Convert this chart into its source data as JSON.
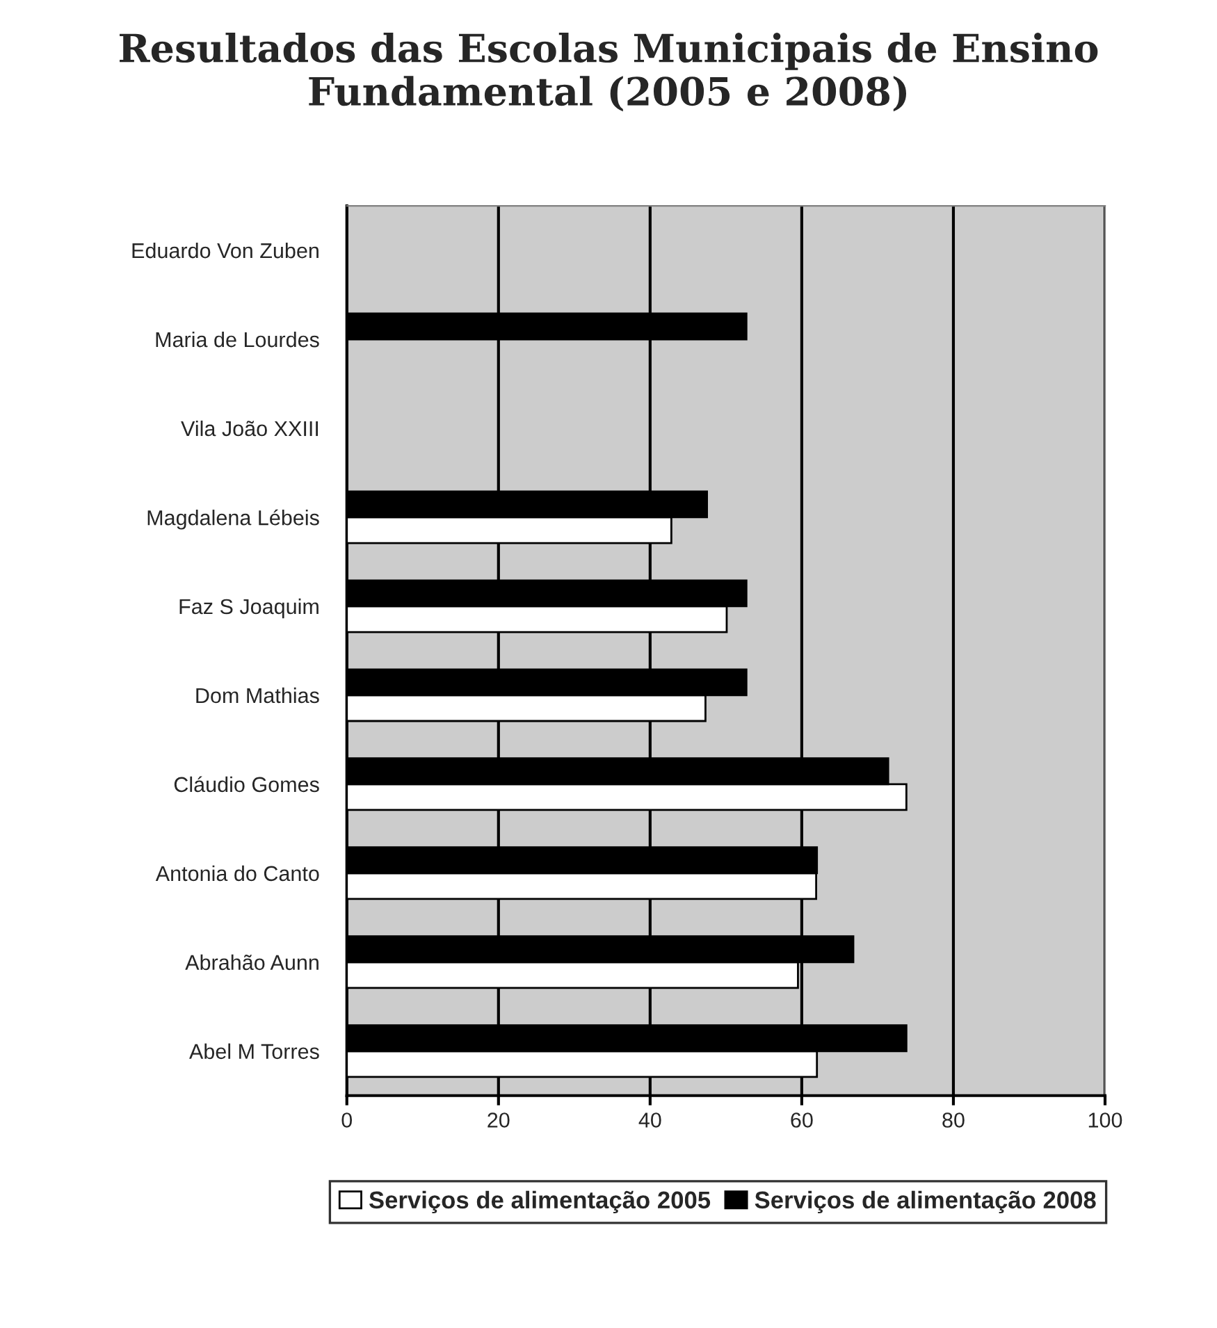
{
  "chart_data": {
    "type": "bar",
    "orientation": "horizontal",
    "title": "Resultados das Escolas Municipais de Ensino Fundamental (2005 e 2008)",
    "categories": [
      "Eduardo Von Zuben",
      "Maria de Lourdes",
      "Vila João XXIII",
      "Magdalena Lébeis",
      "Faz S Joaquim",
      "Dom Mathias",
      "Cláudio Gomes",
      "Antonia do Canto",
      "Abrahão Aunn",
      "Abel M Torres"
    ],
    "series": [
      {
        "name": "Serviços de alimentação 2005",
        "color": "#ffffff",
        "values": [
          null,
          null,
          null,
          42.8,
          50.1,
          47.3,
          73.8,
          61.9,
          59.5,
          62.0
        ]
      },
      {
        "name": "Serviços de alimentação 2008",
        "color": "#000000",
        "values": [
          null,
          52.7,
          null,
          47.5,
          52.7,
          52.7,
          71.4,
          62.0,
          66.8,
          73.8
        ]
      }
    ],
    "xlim": [
      0,
      100
    ],
    "xticks": [
      0,
      20,
      40,
      60,
      80,
      100
    ],
    "grid": "x",
    "legend": "bottom"
  }
}
